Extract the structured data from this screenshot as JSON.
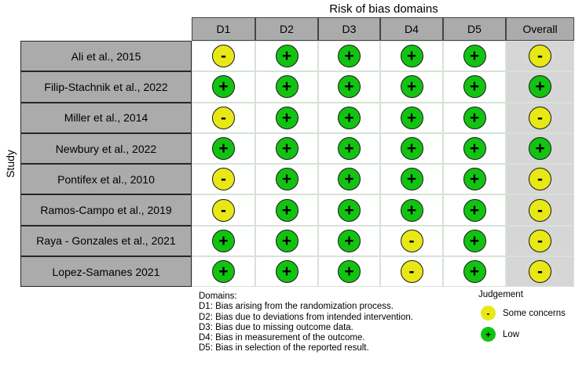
{
  "chart_data": {
    "type": "table",
    "title": "Risk of bias domains",
    "ylabel": "Study",
    "columns": [
      "D1",
      "D2",
      "D3",
      "D4",
      "D5",
      "Overall"
    ],
    "rows": [
      {
        "study": "Ali et al., 2015",
        "judgements": [
          "-",
          "+",
          "+",
          "+",
          "+",
          "-"
        ]
      },
      {
        "study": "Filip-Stachnik et al., 2022",
        "judgements": [
          "+",
          "+",
          "+",
          "+",
          "+",
          "+"
        ]
      },
      {
        "study": "Miller et al., 2014",
        "judgements": [
          "-",
          "+",
          "+",
          "+",
          "+",
          "-"
        ]
      },
      {
        "study": "Newbury et al., 2022",
        "judgements": [
          "+",
          "+",
          "+",
          "+",
          "+",
          "+"
        ]
      },
      {
        "study": "Pontifex et al., 2010",
        "judgements": [
          "-",
          "+",
          "+",
          "+",
          "+",
          "-"
        ]
      },
      {
        "study": "Ramos-Campo et al., 2019",
        "judgements": [
          "-",
          "+",
          "+",
          "+",
          "+",
          "-"
        ]
      },
      {
        "study": "Raya - Gonzales et al., 2021",
        "judgements": [
          "+",
          "+",
          "+",
          "-",
          "+",
          "-"
        ]
      },
      {
        "study": "Lopez-Samanes 2021",
        "judgements": [
          "+",
          "+",
          "+",
          "-",
          "+",
          "-"
        ]
      }
    ],
    "legend": {
      "title": "Judgement",
      "items": [
        {
          "symbol": "-",
          "label": "Some concerns",
          "judgement": "some_concerns",
          "color": "#E8E817"
        },
        {
          "symbol": "+",
          "label": "Low",
          "judgement": "low",
          "color": "#12C312"
        }
      ]
    },
    "footnote": {
      "heading": "Domains:",
      "lines": [
        "D1: Bias arising from the randomization process.",
        "D2: Bias due to deviations from intended intervention.",
        "D3: Bias due to missing outcome data.",
        "D4: Bias in measurement of the outcome.",
        "D5: Bias in selection of the reported result."
      ]
    }
  },
  "colors": {
    "low": "#12C312",
    "some_concerns": "#E8E817",
    "header_fill": "#ABABAB",
    "overall_fill": "#D6D6D6",
    "grid_line": "#D6E3D6",
    "header_border": "#454545",
    "study_border": "#262626",
    "circle_border": "#1A1A1A"
  }
}
